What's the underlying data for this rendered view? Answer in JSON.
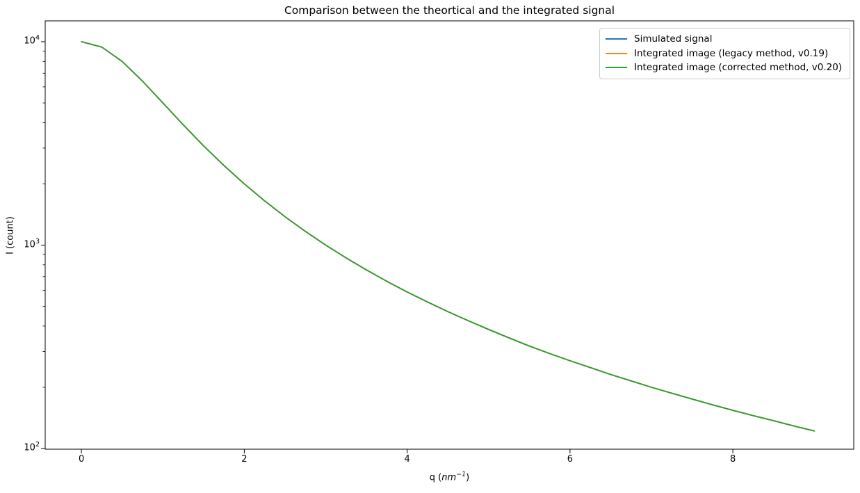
{
  "figure": {
    "title": "Comparison between the theortical and the integrated signal"
  },
  "axes": {
    "xlabel": "q (nm⁻¹)",
    "xlabel_parts": {
      "prefix": "q (",
      "unit_italic": "nm",
      "exponent": "−1",
      "suffix": ")"
    },
    "ylabel": "I (count)",
    "x_tick_labels": [
      "0",
      "2",
      "4",
      "6",
      "8"
    ],
    "x_tick_values": [
      0,
      2,
      4,
      6,
      8
    ],
    "y_tick_base": "10",
    "y_tick_exponents": [
      2,
      3,
      4
    ]
  },
  "legend": {
    "position": "upper right",
    "entries": [
      {
        "label": "Simulated signal",
        "color": "#1f77b4"
      },
      {
        "label": "Integrated image (legacy method, v0.19)",
        "color": "#ff7f0e"
      },
      {
        "label": "Integrated image (corrected method, v0.20)",
        "color": "#2ca02c"
      }
    ]
  },
  "colors": {
    "blue": "#1f77b4",
    "orange": "#ff7f0e",
    "green": "#2ca02c",
    "spine": "#000000",
    "legend_border": "#cccccc",
    "background": "#ffffff"
  },
  "chart_data": {
    "type": "line",
    "title": "Comparison between the theortical and the integrated signal",
    "xlabel": "q (nm⁻¹)",
    "ylabel": "I (count)",
    "x_scale": "linear",
    "y_scale": "log",
    "xlim": [
      -0.44,
      9.49
    ],
    "ylim": [
      99,
      12660
    ],
    "x_ticks": [
      0,
      2,
      4,
      6,
      8
    ],
    "y_ticks": [
      100,
      1000,
      10000
    ],
    "grid": false,
    "legend_position": "upper right",
    "x": [
      0,
      0.25,
      0.5,
      0.75,
      1,
      1.25,
      1.5,
      1.75,
      2,
      2.25,
      2.5,
      2.75,
      3,
      3.25,
      3.5,
      3.75,
      4,
      4.25,
      4.5,
      4.75,
      5,
      5.25,
      5.5,
      5.75,
      6,
      6.25,
      6.5,
      6.75,
      7,
      7.25,
      7.5,
      7.75,
      8,
      8.25,
      8.5,
      8.75,
      9
    ],
    "series": [
      {
        "name": "Simulated signal",
        "color": "#1f77b4",
        "values": [
          10000,
          9412,
          8000,
          6400,
          5000,
          3902,
          3077,
          2462,
          2000,
          1650,
          1379,
          1168,
          1000,
          865,
          755,
          664,
          588,
          525,
          471,
          425,
          385,
          350,
          319,
          293,
          270,
          250,
          231,
          215,
          200,
          187,
          175,
          164,
          154,
          145,
          137,
          129,
          122
        ]
      },
      {
        "name": "Integrated image (legacy method, v0.19)",
        "color": "#ff7f0e",
        "values": [
          10000,
          9412,
          8000,
          6400,
          5000,
          3902,
          3077,
          2462,
          2000,
          1650,
          1379,
          1168,
          1000,
          865,
          755,
          664,
          588,
          525,
          471,
          425,
          385,
          350,
          319,
          293,
          270,
          250,
          231,
          215,
          200,
          187,
          175,
          164,
          154,
          145,
          137,
          129,
          122
        ]
      },
      {
        "name": "Integrated image (corrected method, v0.20)",
        "color": "#2ca02c",
        "values": [
          10000,
          9412,
          8000,
          6400,
          5000,
          3902,
          3077,
          2462,
          2000,
          1650,
          1379,
          1168,
          1000,
          865,
          755,
          664,
          588,
          525,
          471,
          425,
          385,
          350,
          319,
          293,
          270,
          250,
          231,
          215,
          200,
          187,
          175,
          164,
          154,
          145,
          137,
          129,
          122
        ]
      }
    ]
  }
}
